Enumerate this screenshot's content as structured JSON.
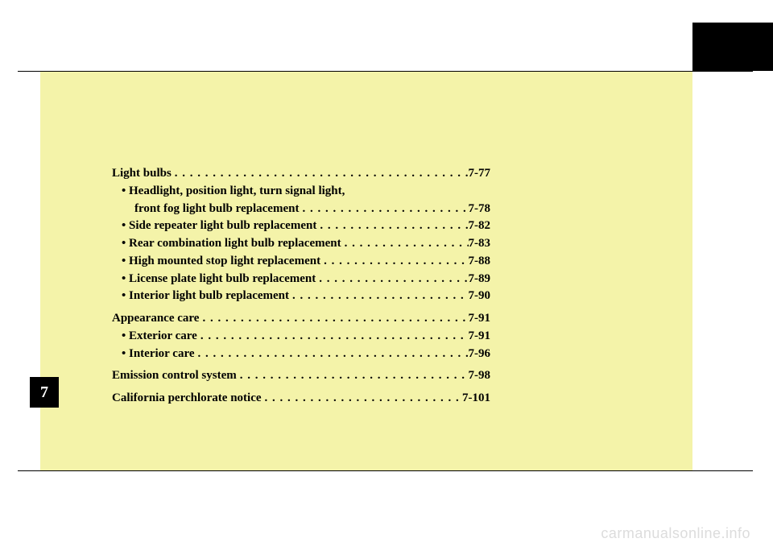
{
  "chapter_tab": "7",
  "watermark": "carmanualsonline.info",
  "colors": {
    "page_background": "#f4f3a9",
    "tab_background": "#000000",
    "tab_text": "#ffffff",
    "watermark_text": "#dcdcdc"
  },
  "toc": {
    "items": [
      {
        "label": "Light bulbs",
        "page": "7-77",
        "level": 0
      },
      {
        "label": "• Headlight, position light, turn signal light,",
        "page": "",
        "level": 1,
        "no_dots": true
      },
      {
        "label": "front fog light bulb replacement",
        "page": "7-78",
        "level": 2
      },
      {
        "label": "• Side repeater light bulb replacement",
        "page": "7-82",
        "level": 1
      },
      {
        "label": "• Rear combination light bulb replacement",
        "page": "7-83",
        "level": 1
      },
      {
        "label": "• High mounted stop light replacement",
        "page": "7-88",
        "level": 1
      },
      {
        "label": "• License plate light bulb replacement",
        "page": "7-89",
        "level": 1
      },
      {
        "label": "• Interior light bulb replacement",
        "page": "7-90",
        "level": 1
      },
      {
        "label": "Appearance care",
        "page": "7-91",
        "level": 0,
        "gap_before": true
      },
      {
        "label": "• Exterior care",
        "page": "7-91",
        "level": 1
      },
      {
        "label": "• Interior care",
        "page": "7-96",
        "level": 1
      },
      {
        "label": "Emission control system",
        "page": "7-98",
        "level": 0,
        "gap_before": true
      },
      {
        "label": "California perchlorate notice",
        "page": "7-101",
        "level": 0,
        "gap_before": true
      }
    ]
  }
}
